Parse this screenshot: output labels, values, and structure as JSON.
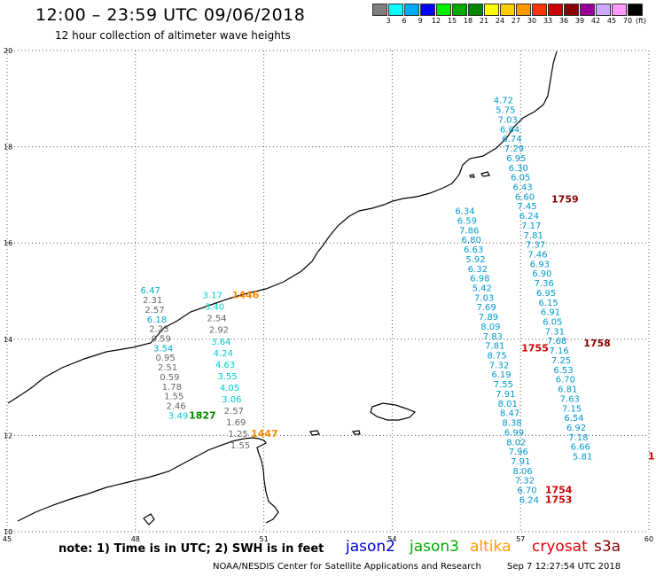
{
  "header": {
    "title": "12:00 – 23:59 UTC 09/06/2018",
    "subtitle": "12 hour collection of altimeter wave heights"
  },
  "colorbar": {
    "colors": [
      "#808080",
      "#00ffff",
      "#00aaff",
      "#0000ff",
      "#00ee00",
      "#00aa00",
      "#008800",
      "#ffff00",
      "#ffcc00",
      "#ff9900",
      "#ff3300",
      "#cc0000",
      "#880000",
      "#990099",
      "#ccaaff",
      "#ff99ff",
      "#000000"
    ],
    "labels": [
      "3",
      "6",
      "9",
      "12",
      "15",
      "18",
      "21",
      "24",
      "27",
      "30",
      "33",
      "36",
      "39",
      "42",
      "45",
      "70"
    ],
    "unit": "(ft)"
  },
  "axes": {
    "x_ticks": [
      "45",
      "48",
      "51",
      "54",
      "57",
      "60"
    ],
    "y_ticks": [
      "20",
      "18",
      "16",
      "14",
      "12",
      "10"
    ],
    "x_range": [
      45,
      60
    ],
    "y_range": [
      10,
      20
    ]
  },
  "tracks": [
    {
      "satellite": "jason3",
      "time": "1827",
      "time_color": "#008800",
      "lon_start": 48.35,
      "lon_step": 0.05,
      "lat_start": 14.95,
      "lat_step": -0.2,
      "values": [
        {
          "v": "6.47",
          "c": "#00aacc"
        },
        {
          "v": "2.31",
          "c": "#666666"
        },
        {
          "v": "2.57",
          "c": "#666666"
        },
        {
          "v": "6.18",
          "c": "#00aacc"
        },
        {
          "v": "2.23",
          "c": "#666666"
        },
        {
          "v": "0.59",
          "c": "#666666"
        },
        {
          "v": "3.54",
          "c": "#00aacc"
        },
        {
          "v": "0.95",
          "c": "#666666"
        },
        {
          "v": "2.51",
          "c": "#666666"
        },
        {
          "v": "0.59",
          "c": "#666666"
        },
        {
          "v": "1.78",
          "c": "#666666"
        },
        {
          "v": "1.55",
          "c": "#666666"
        },
        {
          "v": "2.46",
          "c": "#666666"
        },
        {
          "v": "3.49",
          "c": "#00cccc"
        }
      ]
    },
    {
      "satellite": "altika",
      "time": "1446",
      "time_color": "#ff8800",
      "lon_start": 49.8,
      "lon_step": 0.05,
      "lat_start": 14.85,
      "lat_step": -0.24,
      "values": [
        {
          "v": "3.17",
          "c": "#00cccc"
        },
        {
          "v": "3.40",
          "c": "#00cccc"
        },
        {
          "v": "2.54",
          "c": "#666666"
        },
        {
          "v": "2.92",
          "c": "#666666"
        },
        {
          "v": "3.64",
          "c": "#00cccc"
        },
        {
          "v": "4.24",
          "c": "#00cccc"
        },
        {
          "v": "4.63",
          "c": "#00cccc"
        },
        {
          "v": "3.55",
          "c": "#00cccc"
        },
        {
          "v": "4.05",
          "c": "#00cccc"
        },
        {
          "v": "3.06",
          "c": "#00cccc"
        },
        {
          "v": "2.57",
          "c": "#666666"
        },
        {
          "v": "1.69",
          "c": "#666666"
        },
        {
          "v": "1.25",
          "c": "#666666"
        },
        {
          "v": "1.55",
          "c": "#666666"
        }
      ],
      "time2": "1447",
      "time2_color": "#ff8800"
    },
    {
      "satellite": "cryosat",
      "time": "1755",
      "time_color": "#cc0000",
      "time_low": "1754",
      "time_low2": "1753",
      "lon_start": 55.7,
      "lon_step": 0.05,
      "lat_start": 16.6,
      "lat_step": -0.2,
      "values": [
        {
          "v": "6.34"
        },
        {
          "v": "6.59"
        },
        {
          "v": "7.86"
        },
        {
          "v": "6.80"
        },
        {
          "v": "6.63"
        },
        {
          "v": "5.92"
        },
        {
          "v": "6.32"
        },
        {
          "v": "6.98"
        },
        {
          "v": "5.42"
        },
        {
          "v": "7.03"
        },
        {
          "v": "7.69"
        },
        {
          "v": "7.89"
        },
        {
          "v": "8.09"
        },
        {
          "v": "7.83"
        },
        {
          "v": "7.81"
        },
        {
          "v": "8.75"
        },
        {
          "v": "7.32"
        },
        {
          "v": "6.19"
        },
        {
          "v": "7.55"
        },
        {
          "v": "7.91"
        },
        {
          "v": "8.01"
        },
        {
          "v": "8.47"
        },
        {
          "v": "8.38"
        },
        {
          "v": "6.99"
        },
        {
          "v": "8.02"
        },
        {
          "v": "7.96"
        },
        {
          "v": "7.91"
        },
        {
          "v": "8.06"
        },
        {
          "v": "7.32"
        },
        {
          "v": "6.70"
        },
        {
          "v": "6.24"
        }
      ]
    },
    {
      "satellite": "s3a",
      "time": "1759",
      "time2": "1758",
      "time_color": "#880000",
      "lon_start": 56.6,
      "lon_step": 0.05,
      "lat_start": 18.9,
      "lat_step": -0.2,
      "values": [
        {
          "v": "4.72"
        },
        {
          "v": "5.75"
        },
        {
          "v": "7.03"
        },
        {
          "v": "6.64"
        },
        {
          "v": "6.74"
        },
        {
          "v": "7.29"
        },
        {
          "v": "6.95"
        },
        {
          "v": "6.30"
        },
        {
          "v": "6.05"
        },
        {
          "v": "6.43"
        },
        {
          "v": "6.60"
        },
        {
          "v": "7.45"
        },
        {
          "v": "6.24"
        },
        {
          "v": "7.17"
        },
        {
          "v": "7.81"
        },
        {
          "v": "7.37"
        },
        {
          "v": "7.46"
        },
        {
          "v": "6.93"
        },
        {
          "v": "6.90"
        },
        {
          "v": "7.36"
        },
        {
          "v": "6.95"
        },
        {
          "v": "6.15"
        },
        {
          "v": "6.91"
        },
        {
          "v": "6.05"
        },
        {
          "v": "7.31"
        },
        {
          "v": "7.68"
        },
        {
          "v": "7.16"
        },
        {
          "v": "7.25"
        },
        {
          "v": "6.53"
        },
        {
          "v": "6.70"
        },
        {
          "v": "6.81"
        },
        {
          "v": "7.63"
        },
        {
          "v": "7.15"
        },
        {
          "v": "6.54"
        },
        {
          "v": "6.92"
        },
        {
          "v": "7.18"
        },
        {
          "v": "6.66"
        },
        {
          "v": "5.81"
        }
      ]
    }
  ],
  "extra_label": {
    "text": "1",
    "color": "#cc0000"
  },
  "footer": {
    "note": "note: 1) Time is in UTC; 2) SWH is in feet",
    "satellites": [
      {
        "name": "jason2",
        "color": "#0000dd"
      },
      {
        "name": "jason3",
        "color": "#00aa00"
      },
      {
        "name": "altika",
        "color": "#ff9900"
      },
      {
        "name": "cryosat",
        "color": "#dd0000"
      },
      {
        "name": "s3a",
        "color": "#880000"
      }
    ],
    "credit": "NOAA/NESDIS Center for Satellite Applications and Research",
    "timestamp": "Sep  7 12:27:54 UTC 2018"
  }
}
